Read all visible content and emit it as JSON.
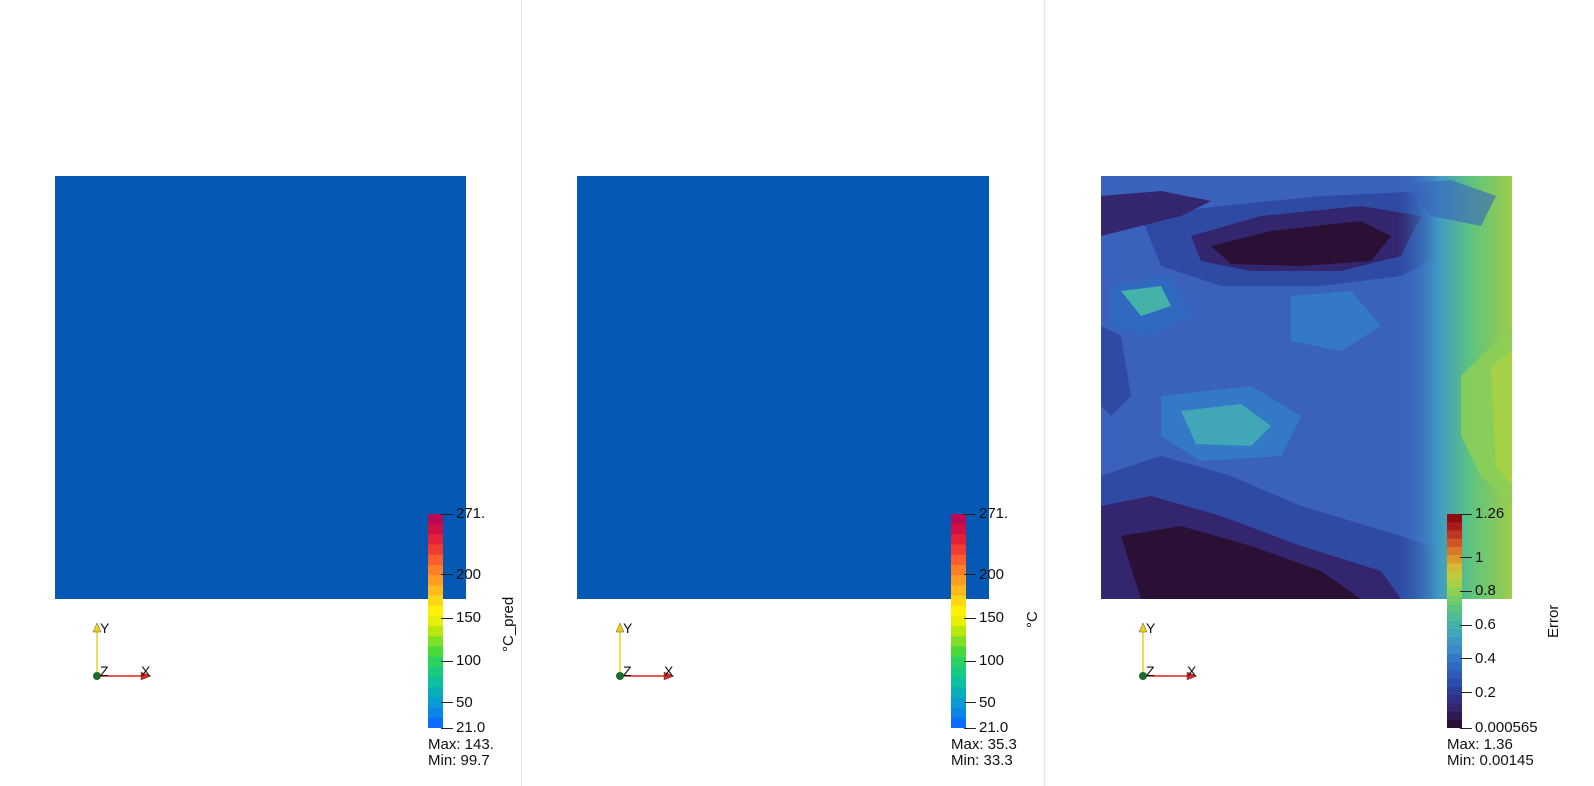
{
  "panels": [
    {
      "id": "prediction",
      "field_color": "#0559b4",
      "colorbar": {
        "title": "°C_pred",
        "colors": [
          "#0d6bff",
          "#0a86e6",
          "#0a9bd2",
          "#0aaeb8",
          "#10bfa0",
          "#18cb80",
          "#2cd25f",
          "#4bd93a",
          "#7fe025",
          "#b7e80f",
          "#e6f007",
          "#fff00a",
          "#ffd516",
          "#ffb91c",
          "#ff9d22",
          "#ff7f27",
          "#fb5e2c",
          "#f23c31",
          "#e42136",
          "#cf1045",
          "#b80a55"
        ],
        "ticks": [
          {
            "label": "271.",
            "pos": 0.0
          },
          {
            "label": "200",
            "pos": 0.283
          },
          {
            "label": "150",
            "pos": 0.487
          },
          {
            "label": "100",
            "pos": 0.687
          },
          {
            "label": "50",
            "pos": 0.883
          },
          {
            "label": "21.0",
            "pos": 1.0
          }
        ]
      },
      "max_label": "Max: 143.",
      "min_label": "Min: 99.7"
    },
    {
      "id": "ground-truth",
      "field_color": "#0559b4",
      "colorbar": {
        "title": "°C",
        "colors": [
          "#0d6bff",
          "#0a86e6",
          "#0a9bd2",
          "#0aaeb8",
          "#10bfa0",
          "#18cb80",
          "#2cd25f",
          "#4bd93a",
          "#7fe025",
          "#b7e80f",
          "#e6f007",
          "#fff00a",
          "#ffd516",
          "#ffb91c",
          "#ff9d22",
          "#ff7f27",
          "#fb5e2c",
          "#f23c31",
          "#e42136",
          "#cf1045",
          "#b80a55"
        ],
        "ticks": [
          {
            "label": "271.",
            "pos": 0.0
          },
          {
            "label": "200",
            "pos": 0.283
          },
          {
            "label": "150",
            "pos": 0.487
          },
          {
            "label": "100",
            "pos": 0.687
          },
          {
            "label": "50",
            "pos": 0.883
          },
          {
            "label": "21.0",
            "pos": 1.0
          }
        ]
      },
      "max_label": "Max: 35.3",
      "min_label": "Min: 33.3"
    },
    {
      "id": "error",
      "field_color": "#3b5fbf",
      "colorbar": {
        "title": "Error",
        "colors": [
          "#2a1035",
          "#2f1a55",
          "#33256e",
          "#332f86",
          "#2f3d9c",
          "#2c4dac",
          "#2e5cb8",
          "#3069c0",
          "#3479c6",
          "#3a89c8",
          "#3f98c4",
          "#40a6b8",
          "#44b2a8",
          "#4dbd95",
          "#5dc47f",
          "#72cb69",
          "#8ccf56",
          "#a6d045",
          "#bfcb3a",
          "#d3b934",
          "#dc9a2e",
          "#d9772a",
          "#cf5426",
          "#c03421",
          "#ab1a1b",
          "#8f0c13"
        ],
        "ticks": [
          {
            "label": "1.26",
            "pos": 0.0
          },
          {
            "label": "1",
            "pos": 0.205
          },
          {
            "label": "0.8",
            "pos": 0.362
          },
          {
            "label": "0.6",
            "pos": 0.52
          },
          {
            "label": "0.4",
            "pos": 0.677
          },
          {
            "label": "0.2",
            "pos": 0.835
          },
          {
            "label": "0.000565",
            "pos": 1.0
          }
        ]
      },
      "max_label": "Max: 1.36",
      "min_label": "Min: 0.00145"
    }
  ],
  "axes_labels": {
    "x": "X",
    "y": "Y",
    "z": "Z"
  },
  "axes_colors": {
    "x": "#e02020",
    "y": "#e8d21a",
    "z": "#1e6b2a"
  }
}
